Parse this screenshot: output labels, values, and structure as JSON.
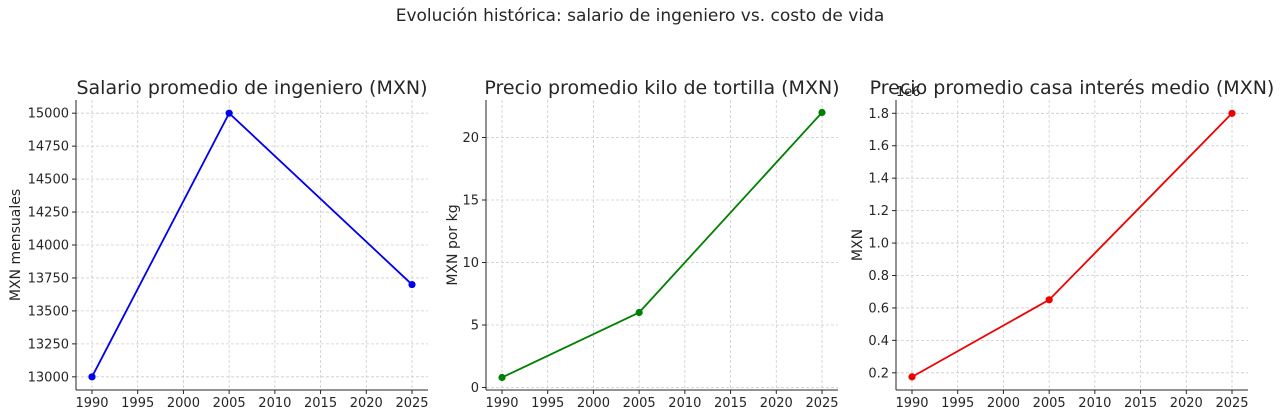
{
  "suptitle": "Evolución histórica: salario de ingeniero vs. costo de vida",
  "chart_data": [
    {
      "type": "line",
      "title": "Salario promedio de ingeniero (MXN)",
      "xlabel": "",
      "ylabel": "MXN mensuales",
      "x": [
        1990,
        2005,
        2025
      ],
      "series": [
        {
          "values": [
            13000,
            15000,
            13700
          ],
          "color": "#0000ee",
          "marker": "circle"
        }
      ],
      "xticks": [
        1990,
        1995,
        2000,
        2005,
        2010,
        2015,
        2020,
        2025
      ],
      "yticks": [
        13000,
        13250,
        13500,
        13750,
        14000,
        14250,
        14500,
        14750,
        15000
      ],
      "ytick_labels": [
        "13000",
        "13250",
        "13500",
        "13750",
        "14000",
        "14250",
        "14500",
        "14750",
        "15000"
      ],
      "xlim": [
        1988.25,
        2026.75
      ],
      "ylim": [
        12900,
        15100
      ],
      "offset_label": "",
      "grid": true
    },
    {
      "type": "line",
      "title": "Precio promedio kilo de tortilla (MXN)",
      "xlabel": "",
      "ylabel": "MXN por kg",
      "x": [
        1990,
        2005,
        2025
      ],
      "series": [
        {
          "values": [
            0.8,
            6,
            22
          ],
          "color": "#008000",
          "marker": "circle"
        }
      ],
      "xticks": [
        1990,
        1995,
        2000,
        2005,
        2010,
        2015,
        2020,
        2025
      ],
      "yticks": [
        0,
        5,
        10,
        15,
        20
      ],
      "ytick_labels": [
        "0",
        "5",
        "10",
        "15",
        "20"
      ],
      "xlim": [
        1988.25,
        2026.75
      ],
      "ylim": [
        -0.2,
        23
      ],
      "offset_label": "",
      "grid": true
    },
    {
      "type": "line",
      "title": "Precio promedio casa interés medio (MXN)",
      "xlabel": "",
      "ylabel": "MXN",
      "x": [
        1990,
        2005,
        2025
      ],
      "series": [
        {
          "values": [
            175000,
            650000,
            1800000
          ],
          "color": "#ee0000",
          "marker": "circle"
        }
      ],
      "xticks": [
        1990,
        1995,
        2000,
        2005,
        2010,
        2015,
        2020,
        2025
      ],
      "yticks": [
        200000,
        400000,
        600000,
        800000,
        1000000,
        1200000,
        1400000,
        1600000,
        1800000
      ],
      "ytick_labels": [
        "0.2",
        "0.4",
        "0.6",
        "0.8",
        "1.0",
        "1.2",
        "1.4",
        "1.6",
        "1.8"
      ],
      "xlim": [
        1988.25,
        2026.75
      ],
      "ylim": [
        94000,
        1882000
      ],
      "offset_label": "1e6",
      "grid": true
    }
  ]
}
